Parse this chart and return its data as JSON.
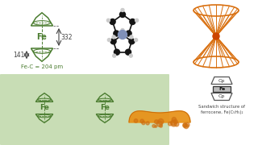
{
  "green": "#4a7c2f",
  "orange": "#d97010",
  "orange_fill": "#e8920a",
  "orange_center": "#cc4400",
  "gray_dark": "#444444",
  "white": "#ffffff",
  "light_green_bg": "#c8ddb5",
  "fe_c_text": "Fe-C = 204 pm",
  "sandwich_text": "Sandwich structure of\nferrocene, Fe(C₅H₅)₂",
  "num_332": "332",
  "num_141": "141"
}
